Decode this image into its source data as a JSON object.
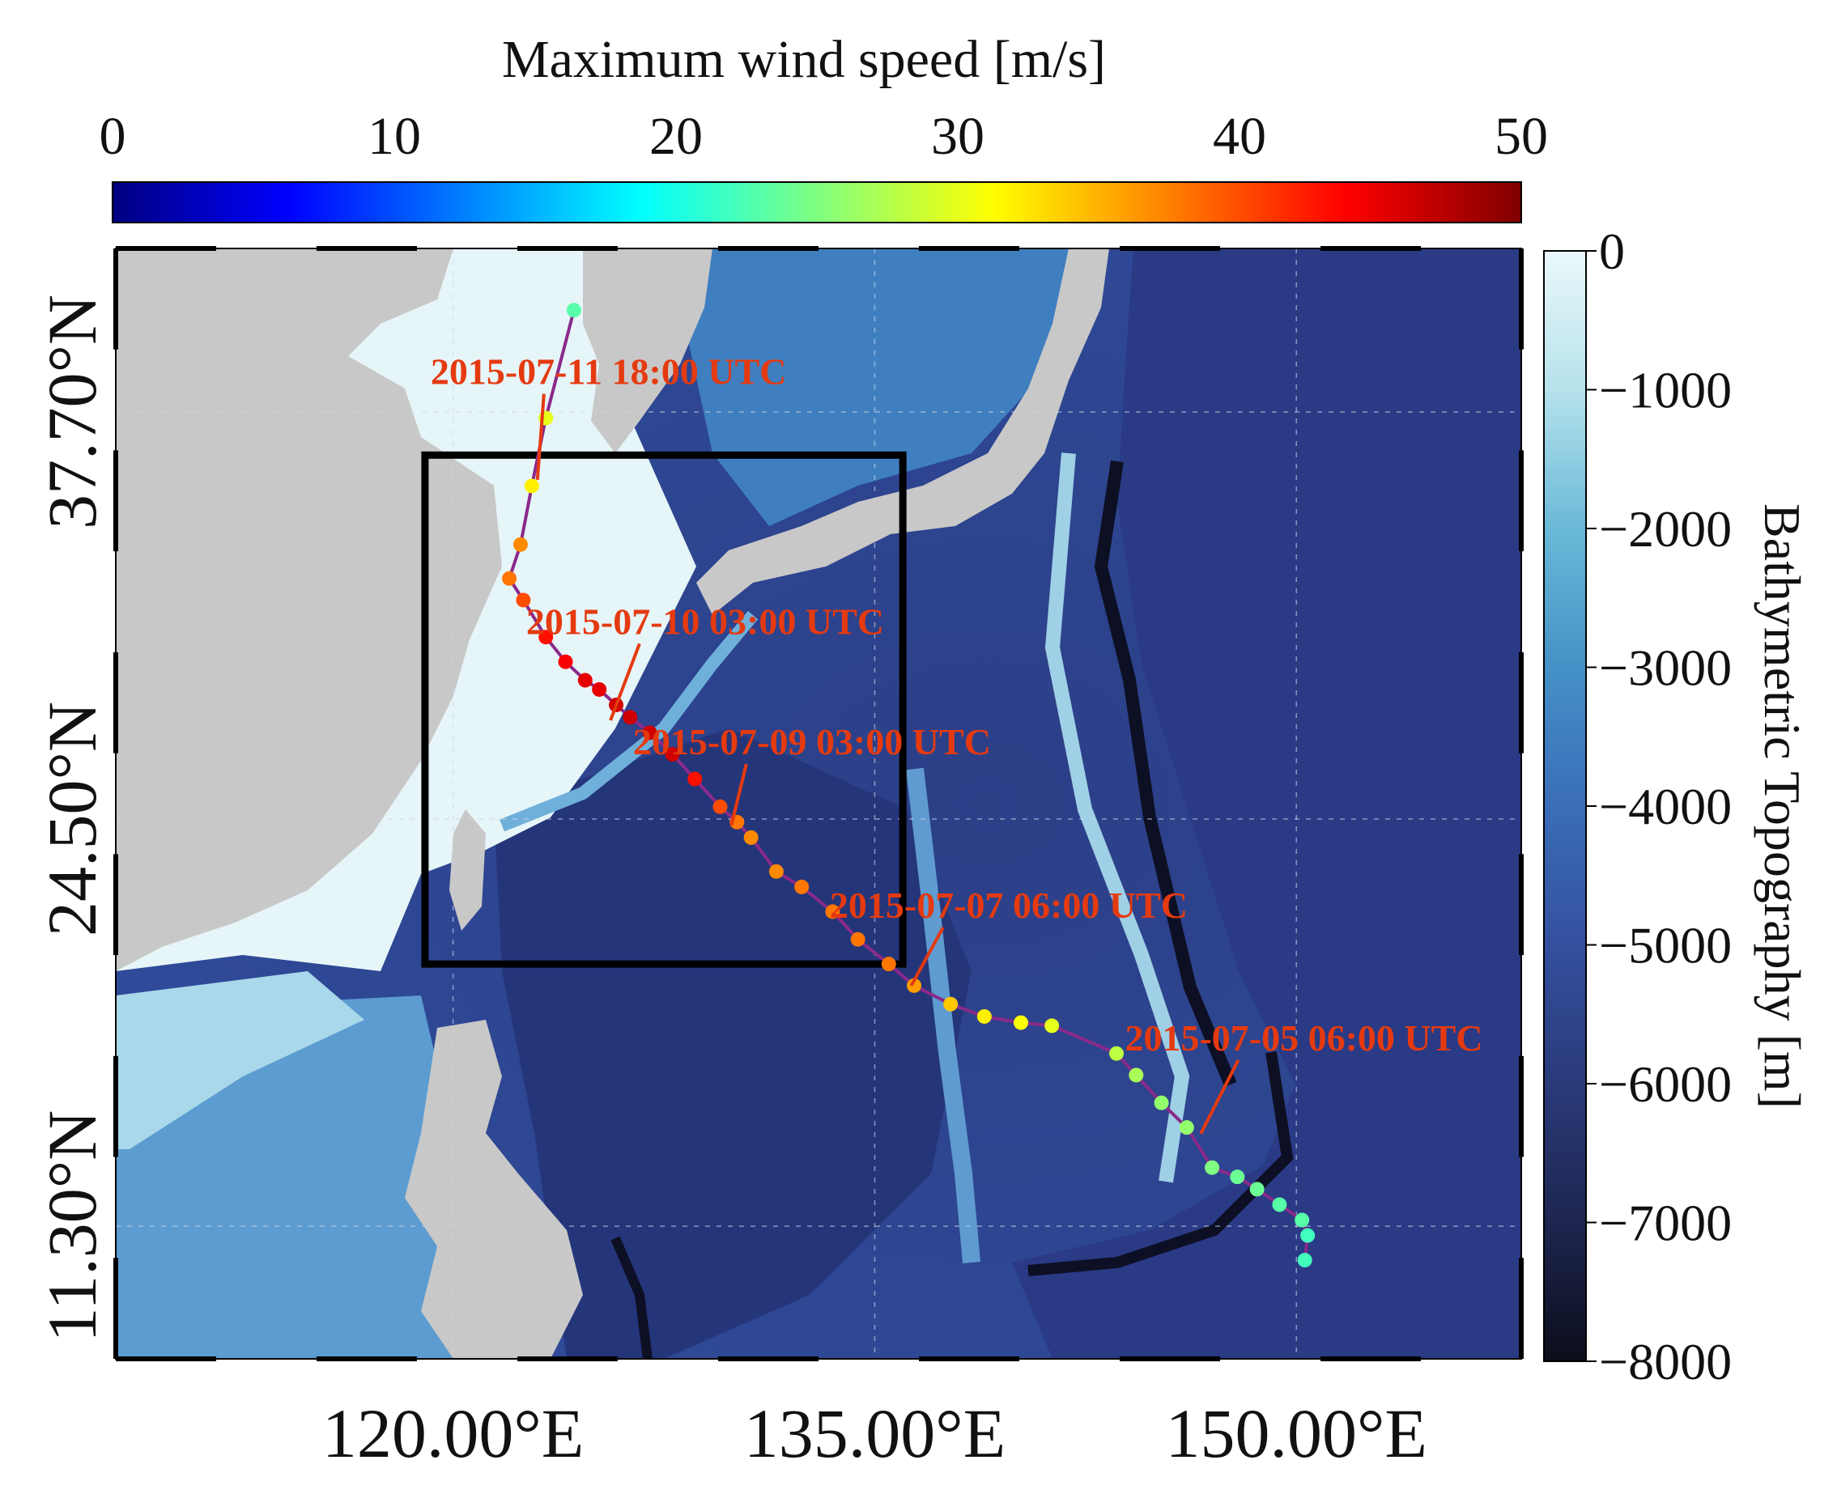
{
  "figure": {
    "wind_colorbar": {
      "label": "Maximum wind speed [m/s]",
      "ticks": [
        0,
        10,
        20,
        30,
        40,
        50
      ],
      "colors": [
        "#000080",
        "#0000ff",
        "#0080ff",
        "#00ffff",
        "#80ff80",
        "#ffff00",
        "#ff8000",
        "#ff0000",
        "#800000"
      ]
    },
    "depth_colorbar": {
      "label": "Bathymetric Topography [m]",
      "ticks": [
        0,
        -1000,
        -2000,
        -3000,
        -4000,
        -5000,
        -6000,
        -7000,
        -8000
      ],
      "colors": [
        "#eaf8fa",
        "#b6e2ec",
        "#6ab9d8",
        "#4591c6",
        "#3a6db8",
        "#34509e",
        "#2a3a7a",
        "#1e2650",
        "#0b0d1a"
      ]
    },
    "map": {
      "lon_range": [
        108,
        158
      ],
      "lat_range": [
        7,
        43
      ],
      "land_color": "#c8c8c8",
      "track_line_color": "#8a2a8a",
      "annotation_color": "#e53a10",
      "box": {
        "lon": [
          119,
          136
        ],
        "lat": [
          19.8,
          36.3
        ]
      },
      "lon_ticks": [
        {
          "value": 120,
          "label": "120.00°E"
        },
        {
          "value": 135,
          "label": "135.00°E"
        },
        {
          "value": 150,
          "label": "150.00°E"
        }
      ],
      "lat_ticks": [
        {
          "value": 11.3,
          "label": "11.30°N"
        },
        {
          "value": 24.5,
          "label": "24.50°N"
        },
        {
          "value": 37.7,
          "label": "37.70°N"
        }
      ]
    }
  },
  "chart_data": {
    "type": "scatter",
    "title": "",
    "xlabel": "",
    "ylabel": "",
    "x_unit": "°E",
    "y_unit": "°N",
    "track": [
      {
        "lon": 150.3,
        "lat": 10.2,
        "wind": 22
      },
      {
        "lon": 150.4,
        "lat": 11.0,
        "wind": 22
      },
      {
        "lon": 150.2,
        "lat": 11.5,
        "wind": 23
      },
      {
        "lon": 149.4,
        "lat": 12.0,
        "wind": 23
      },
      {
        "lon": 148.6,
        "lat": 12.5,
        "wind": 24
      },
      {
        "lon": 147.9,
        "lat": 12.9,
        "wind": 24
      },
      {
        "lon": 147.0,
        "lat": 13.2,
        "wind": 25
      },
      {
        "lon": 146.1,
        "lat": 14.5,
        "wind": 26
      },
      {
        "lon": 145.2,
        "lat": 15.3,
        "wind": 26
      },
      {
        "lon": 144.3,
        "lat": 16.2,
        "wind": 27
      },
      {
        "lon": 143.6,
        "lat": 16.9,
        "wind": 28
      },
      {
        "lon": 141.3,
        "lat": 17.8,
        "wind": 30
      },
      {
        "lon": 140.2,
        "lat": 17.9,
        "wind": 31
      },
      {
        "lon": 138.9,
        "lat": 18.1,
        "wind": 32
      },
      {
        "lon": 137.7,
        "lat": 18.5,
        "wind": 34
      },
      {
        "lon": 136.4,
        "lat": 19.1,
        "wind": 36
      },
      {
        "lon": 135.5,
        "lat": 19.8,
        "wind": 38
      },
      {
        "lon": 134.4,
        "lat": 20.6,
        "wind": 38
      },
      {
        "lon": 133.5,
        "lat": 21.5,
        "wind": 38
      },
      {
        "lon": 132.4,
        "lat": 22.3,
        "wind": 38
      },
      {
        "lon": 131.5,
        "lat": 22.8,
        "wind": 37
      },
      {
        "lon": 130.6,
        "lat": 23.9,
        "wind": 37
      },
      {
        "lon": 130.1,
        "lat": 24.4,
        "wind": 38
      },
      {
        "lon": 129.5,
        "lat": 24.9,
        "wind": 40
      },
      {
        "lon": 128.6,
        "lat": 25.8,
        "wind": 43
      },
      {
        "lon": 127.8,
        "lat": 26.6,
        "wind": 46
      },
      {
        "lon": 127.0,
        "lat": 27.3,
        "wind": 46
      },
      {
        "lon": 126.3,
        "lat": 27.8,
        "wind": 46
      },
      {
        "lon": 125.8,
        "lat": 28.2,
        "wind": 46
      },
      {
        "lon": 125.2,
        "lat": 28.7,
        "wind": 45
      },
      {
        "lon": 124.7,
        "lat": 29.0,
        "wind": 45
      },
      {
        "lon": 124.0,
        "lat": 29.6,
        "wind": 44
      },
      {
        "lon": 123.3,
        "lat": 30.4,
        "wind": 43
      },
      {
        "lon": 122.5,
        "lat": 31.6,
        "wind": 40
      },
      {
        "lon": 122.0,
        "lat": 32.3,
        "wind": 38
      },
      {
        "lon": 122.4,
        "lat": 33.4,
        "wind": 37
      },
      {
        "lon": 122.8,
        "lat": 35.3,
        "wind": 32
      },
      {
        "lon": 123.3,
        "lat": 37.5,
        "wind": 30
      },
      {
        "lon": 124.3,
        "lat": 41.0,
        "wind": 23
      }
    ],
    "annotations": [
      {
        "text": "2015-07-11 18:00 UTC",
        "lon": 123.0,
        "lat": 35.5,
        "text_lon": 119.2,
        "text_lat": 38.6
      },
      {
        "text": "2015-07-10 03:00 UTC",
        "lon": 125.6,
        "lat": 27.7,
        "text_lon": 122.6,
        "text_lat": 30.5
      },
      {
        "text": "2015-07-09 03:00 UTC",
        "lon": 129.9,
        "lat": 24.3,
        "text_lon": 126.4,
        "text_lat": 26.6
      },
      {
        "text": "2015-07-07 06:00 UTC",
        "lon": 136.3,
        "lat": 19.1,
        "text_lon": 133.4,
        "text_lat": 21.3
      },
      {
        "text": "2015-07-05 06:00 UTC",
        "lon": 146.6,
        "lat": 14.3,
        "text_lon": 143.9,
        "text_lat": 17.0
      }
    ],
    "xlim": [
      108,
      158
    ],
    "ylim": [
      7,
      43
    ]
  }
}
